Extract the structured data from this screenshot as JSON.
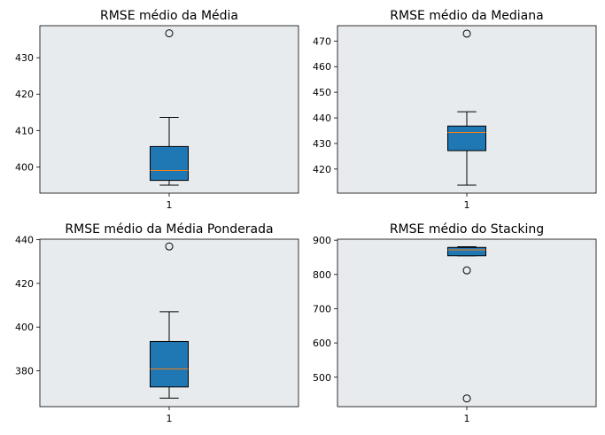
{
  "chart_data": [
    {
      "type": "box",
      "title": "RMSE médio da Média",
      "categories": [
        "1"
      ],
      "ylim": [
        392.8,
        438.8
      ],
      "yticks": [
        400,
        410,
        420,
        430
      ],
      "box": {
        "whisker_low": 395.0,
        "q1": 396.3,
        "median": 399.0,
        "q3": 405.6,
        "whisker_high": 413.6
      },
      "outliers": [
        436.7
      ],
      "grid": false
    },
    {
      "type": "box",
      "title": "RMSE médio da Mediana",
      "categories": [
        "1"
      ],
      "ylim": [
        410.6,
        476.0
      ],
      "yticks": [
        420,
        430,
        440,
        450,
        460,
        470
      ],
      "box": {
        "whisker_low": 413.7,
        "q1": 427.2,
        "median": 434.3,
        "q3": 436.8,
        "whisker_high": 442.4
      },
      "outliers": [
        472.9
      ],
      "grid": false
    },
    {
      "type": "box",
      "title": "RMSE médio da Média Ponderada",
      "categories": [
        "1"
      ],
      "ylim": [
        363.6,
        440.2
      ],
      "yticks": [
        380,
        400,
        420,
        440
      ],
      "box": {
        "whisker_low": 367.5,
        "q1": 372.6,
        "median": 380.9,
        "q3": 393.4,
        "whisker_high": 407.0
      },
      "outliers": [
        436.9
      ],
      "grid": false
    },
    {
      "type": "box",
      "title": "RMSE médio do Stacking",
      "categories": [
        "1"
      ],
      "ylim": [
        414.0,
        903.0
      ],
      "yticks": [
        500,
        600,
        700,
        800,
        900
      ],
      "box": {
        "whisker_low": 854.5,
        "q1": 854.5,
        "median": 872.0,
        "q3": 879.0,
        "whisker_high": 881.0
      },
      "outliers": [
        812.0,
        438.0
      ],
      "grid": false
    }
  ],
  "colors": {
    "axes_bg": "#e8ebee",
    "box_fill": "#1f77b4",
    "median": "#ff7f0e",
    "frame": "#000000",
    "figure_bg": "#ffffff"
  }
}
